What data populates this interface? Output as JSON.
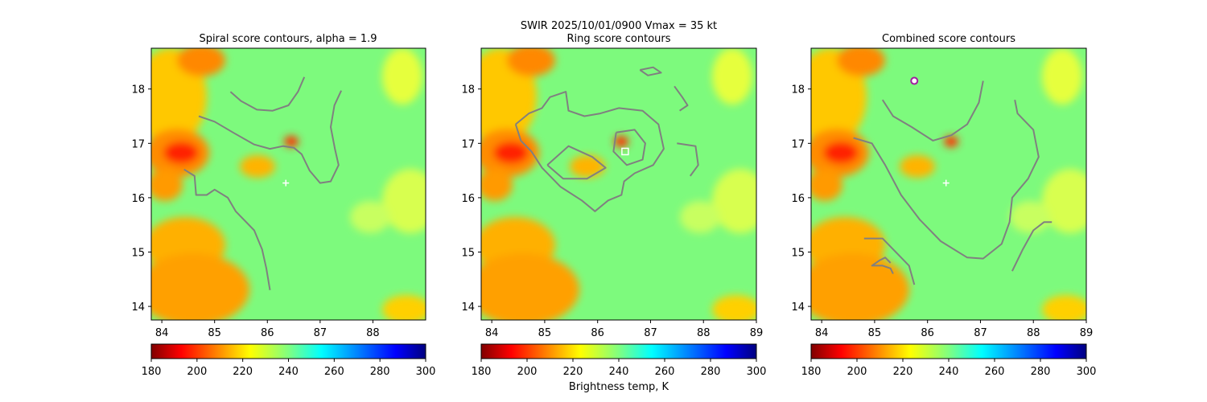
{
  "suptitle_line1": "SWIR  2025/10/01/0900    Vmax = 35 kt",
  "colorbar_label": "Brightness temp, K",
  "chart_data": [
    {
      "type": "heatmap",
      "title": "Spiral score contours, alpha =  1.9",
      "xlim": [
        83.8,
        89.0
      ],
      "ylim": [
        13.75,
        18.75
      ],
      "xticks": [
        "84",
        "85",
        "86",
        "87",
        "88"
      ],
      "yticks": [
        "14",
        "15",
        "16",
        "17",
        "18"
      ],
      "center_marker": {
        "lon": 86.35,
        "lat": 16.27,
        "symbol": "+"
      },
      "colorbar": {
        "min": 180,
        "max": 300,
        "ticks": [
          "180",
          "200",
          "220",
          "240",
          "260",
          "280",
          "300"
        ],
        "colormap": "jet_r"
      },
      "contours": [
        [
          [
            85.3,
            17.95
          ],
          [
            85.5,
            17.78
          ],
          [
            85.8,
            17.62
          ],
          [
            86.1,
            17.6
          ],
          [
            86.4,
            17.7
          ],
          [
            86.58,
            17.95
          ],
          [
            86.7,
            18.22
          ]
        ],
        [
          [
            84.7,
            17.5
          ],
          [
            85.0,
            17.4
          ],
          [
            85.35,
            17.2
          ],
          [
            85.75,
            16.98
          ],
          [
            86.05,
            16.9
          ],
          [
            86.3,
            16.95
          ],
          [
            86.5,
            16.92
          ],
          [
            86.65,
            16.8
          ],
          [
            86.8,
            16.5
          ],
          [
            87.0,
            16.27
          ],
          [
            87.2,
            16.3
          ],
          [
            87.35,
            16.6
          ],
          [
            87.28,
            16.9
          ],
          [
            87.2,
            17.3
          ],
          [
            87.27,
            17.7
          ],
          [
            87.4,
            17.97
          ]
        ],
        [
          [
            84.42,
            16.52
          ],
          [
            84.62,
            16.4
          ],
          [
            84.65,
            16.05
          ],
          [
            84.85,
            16.05
          ],
          [
            85.0,
            16.15
          ],
          [
            85.25,
            16.0
          ],
          [
            85.4,
            15.75
          ],
          [
            85.75,
            15.4
          ],
          [
            85.9,
            15.05
          ],
          [
            85.98,
            14.7
          ],
          [
            86.05,
            14.3
          ]
        ]
      ]
    },
    {
      "type": "heatmap",
      "title": "Ring score contours",
      "xlim": [
        83.8,
        89.0
      ],
      "ylim": [
        13.75,
        18.75
      ],
      "xticks": [
        "84",
        "85",
        "86",
        "87",
        "88",
        "89"
      ],
      "yticks": [
        "14",
        "15",
        "16",
        "17",
        "18"
      ],
      "center_marker": {
        "lon": 86.52,
        "lat": 16.85,
        "symbol": "square"
      },
      "colorbar": {
        "min": 180,
        "max": 300,
        "ticks": [
          "180",
          "200",
          "220",
          "240",
          "260",
          "280",
          "300"
        ],
        "colormap": "jet_r"
      },
      "contours": [
        [
          [
            84.45,
            17.35
          ],
          [
            84.7,
            17.55
          ],
          [
            84.95,
            17.65
          ],
          [
            85.1,
            17.85
          ],
          [
            85.4,
            17.95
          ],
          [
            85.45,
            17.6
          ],
          [
            85.75,
            17.5
          ],
          [
            86.05,
            17.55
          ],
          [
            86.4,
            17.65
          ],
          [
            86.85,
            17.6
          ],
          [
            87.15,
            17.35
          ],
          [
            87.25,
            16.9
          ],
          [
            87.05,
            16.6
          ],
          [
            86.7,
            16.45
          ],
          [
            86.5,
            16.3
          ],
          [
            86.45,
            16.05
          ],
          [
            86.2,
            15.95
          ],
          [
            85.95,
            15.75
          ],
          [
            85.7,
            15.95
          ],
          [
            85.3,
            16.2
          ],
          [
            84.95,
            16.55
          ],
          [
            84.75,
            16.85
          ],
          [
            84.55,
            17.05
          ],
          [
            84.45,
            17.35
          ]
        ],
        [
          [
            85.05,
            16.6
          ],
          [
            85.45,
            16.95
          ],
          [
            85.9,
            16.75
          ],
          [
            86.15,
            16.55
          ],
          [
            85.8,
            16.35
          ],
          [
            85.35,
            16.35
          ],
          [
            85.05,
            16.6
          ]
        ],
        [
          [
            86.35,
            17.2
          ],
          [
            86.7,
            17.25
          ],
          [
            86.9,
            17.0
          ],
          [
            86.85,
            16.7
          ],
          [
            86.55,
            16.6
          ],
          [
            86.3,
            16.85
          ],
          [
            86.35,
            17.2
          ]
        ],
        [
          [
            86.8,
            18.35
          ],
          [
            87.05,
            18.4
          ],
          [
            87.2,
            18.3
          ],
          [
            86.95,
            18.25
          ],
          [
            86.8,
            18.35
          ]
        ],
        [
          [
            87.5,
            17.0
          ],
          [
            87.85,
            16.95
          ],
          [
            87.9,
            16.6
          ],
          [
            87.75,
            16.4
          ]
        ],
        [
          [
            87.45,
            18.05
          ],
          [
            87.6,
            17.85
          ],
          [
            87.7,
            17.7
          ],
          [
            87.55,
            17.6
          ]
        ]
      ]
    },
    {
      "type": "heatmap",
      "title": "Combined score contours",
      "xlim": [
        83.8,
        89.0
      ],
      "ylim": [
        13.75,
        18.75
      ],
      "xticks": [
        "84",
        "85",
        "86",
        "87",
        "88",
        "89"
      ],
      "yticks": [
        "14",
        "15",
        "16",
        "17",
        "18"
      ],
      "center_marker": {
        "lon": 86.35,
        "lat": 16.27,
        "symbol": "+"
      },
      "best_fix": {
        "lon": 85.75,
        "lat": 18.15,
        "symbol": "circle",
        "color": "#a020a0"
      },
      "colorbar": {
        "min": 180,
        "max": 300,
        "ticks": [
          "180",
          "200",
          "220",
          "240",
          "260",
          "280",
          "300"
        ],
        "colormap": "jet_r"
      },
      "contours": [
        [
          [
            85.15,
            17.8
          ],
          [
            85.35,
            17.5
          ],
          [
            85.7,
            17.3
          ],
          [
            86.1,
            17.05
          ],
          [
            86.45,
            17.15
          ],
          [
            86.75,
            17.35
          ],
          [
            86.97,
            17.75
          ],
          [
            87.05,
            18.15
          ]
        ],
        [
          [
            84.6,
            17.1
          ],
          [
            84.95,
            17.0
          ],
          [
            85.2,
            16.6
          ],
          [
            85.5,
            16.05
          ],
          [
            85.85,
            15.6
          ],
          [
            86.25,
            15.2
          ],
          [
            86.75,
            14.9
          ],
          [
            87.05,
            14.88
          ],
          [
            87.4,
            15.15
          ],
          [
            87.55,
            15.55
          ],
          [
            87.6,
            16.0
          ],
          [
            87.9,
            16.35
          ],
          [
            88.1,
            16.75
          ],
          [
            88.0,
            17.25
          ],
          [
            87.7,
            17.55
          ],
          [
            87.65,
            17.8
          ]
        ],
        [
          [
            85.3,
            14.8
          ],
          [
            85.2,
            14.9
          ],
          [
            85.1,
            14.85
          ],
          [
            84.95,
            14.75
          ],
          [
            85.15,
            14.75
          ],
          [
            85.3,
            14.7
          ],
          [
            85.35,
            14.6
          ]
        ],
        [
          [
            84.8,
            15.25
          ],
          [
            85.15,
            15.25
          ],
          [
            85.35,
            15.05
          ],
          [
            85.65,
            14.75
          ],
          [
            85.75,
            14.4
          ]
        ],
        [
          [
            87.6,
            14.65
          ],
          [
            87.8,
            15.05
          ],
          [
            88.0,
            15.4
          ],
          [
            88.2,
            15.55
          ],
          [
            88.35,
            15.55
          ]
        ]
      ]
    }
  ]
}
